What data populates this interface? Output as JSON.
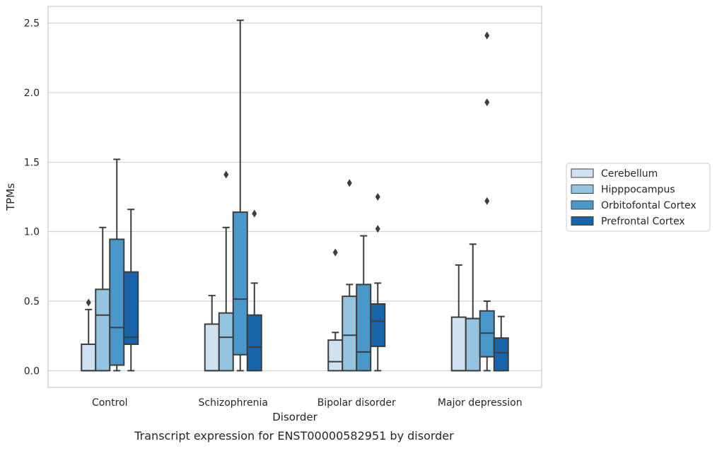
{
  "chart_data": {
    "type": "box",
    "title": "",
    "xlabel": "Disorder",
    "ylabel": "TPMs",
    "caption": "Transcript expression for ENST00000582951 by disorder",
    "ylim": [
      -0.12,
      2.62
    ],
    "yticks": [
      0.0,
      0.5,
      1.0,
      1.5,
      2.0,
      2.5
    ],
    "ytick_labels": [
      "0.0",
      "0.5",
      "1.0",
      "1.5",
      "2.0",
      "2.5"
    ],
    "grid": "horizontal",
    "legend_position": "right",
    "categories": [
      "Control",
      "Schizophrenia",
      "Bipolar disorder",
      "Major depression"
    ],
    "series": [
      {
        "name": "Cerebellum",
        "color": "#d0e1f2",
        "boxes": [
          {
            "whislo": 0.0,
            "q1": 0.0,
            "med": 0.0,
            "q3": 0.19,
            "whishi": 0.44,
            "fliers": [
              0.49
            ]
          },
          {
            "whislo": 0.0,
            "q1": 0.0,
            "med": 0.0,
            "q3": 0.335,
            "whishi": 0.54,
            "fliers": []
          },
          {
            "whislo": 0.0,
            "q1": 0.0,
            "med": 0.065,
            "q3": 0.22,
            "whishi": 0.275,
            "fliers": [
              0.85
            ]
          },
          {
            "whislo": 0.0,
            "q1": 0.0,
            "med": 0.0,
            "q3": 0.385,
            "whishi": 0.76,
            "fliers": []
          }
        ]
      },
      {
        "name": "Hipppocampus",
        "color": "#94c4df",
        "boxes": [
          {
            "whislo": 0.0,
            "q1": 0.0,
            "med": 0.4,
            "q3": 0.585,
            "whishi": 1.03,
            "fliers": []
          },
          {
            "whislo": 0.0,
            "q1": 0.0,
            "med": 0.24,
            "q3": 0.415,
            "whishi": 1.03,
            "fliers": [
              1.41
            ]
          },
          {
            "whislo": 0.0,
            "q1": 0.0,
            "med": 0.255,
            "q3": 0.535,
            "whishi": 0.62,
            "fliers": [
              1.35
            ]
          },
          {
            "whislo": 0.0,
            "q1": 0.0,
            "med": 0.375,
            "q3": 0.375,
            "whishi": 0.91,
            "fliers": []
          }
        ]
      },
      {
        "name": "Orbitofontal Cortex",
        "color": "#4a98c9",
        "boxes": [
          {
            "whislo": 0.0,
            "q1": 0.04,
            "med": 0.31,
            "q3": 0.945,
            "whishi": 1.52,
            "fliers": []
          },
          {
            "whislo": 0.0,
            "q1": 0.115,
            "med": 0.515,
            "q3": 1.14,
            "whishi": 2.52,
            "fliers": []
          },
          {
            "whislo": 0.0,
            "q1": 0.0,
            "med": 0.135,
            "q3": 0.62,
            "whishi": 0.97,
            "fliers": []
          },
          {
            "whislo": 0.0,
            "q1": 0.1,
            "med": 0.27,
            "q3": 0.43,
            "whishi": 0.5,
            "fliers": [
              1.22,
              1.93,
              2.41
            ]
          }
        ]
      },
      {
        "name": "Prefrontal Cortex",
        "color": "#1764ab",
        "boxes": [
          {
            "whislo": 0.0,
            "q1": 0.19,
            "med": 0.24,
            "q3": 0.71,
            "whishi": 1.16,
            "fliers": []
          },
          {
            "whislo": 0.0,
            "q1": 0.0,
            "med": 0.17,
            "q3": 0.4,
            "whishi": 0.63,
            "fliers": [
              1.13
            ]
          },
          {
            "whislo": 0.0,
            "q1": 0.175,
            "med": 0.355,
            "q3": 0.48,
            "whishi": 0.63,
            "fliers": [
              1.02,
              1.25
            ]
          },
          {
            "whislo": 0.0,
            "q1": 0.0,
            "med": 0.13,
            "q3": 0.235,
            "whishi": 0.39,
            "fliers": []
          }
        ]
      }
    ]
  }
}
